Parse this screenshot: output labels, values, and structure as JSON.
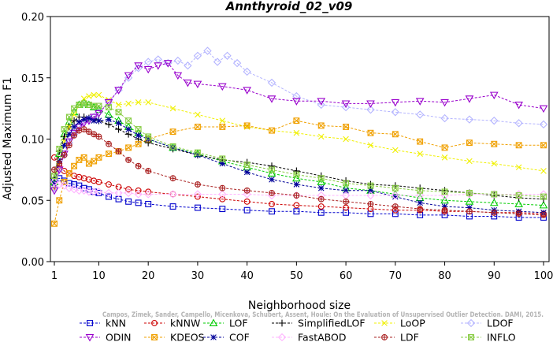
{
  "chart_data": {
    "type": "line",
    "title": "Annthyroid_02_v09",
    "xlabel": "Neighborhood size",
    "ylabel": "Adjusted Maximum F1",
    "xlim": [
      0,
      100
    ],
    "ylim": [
      0,
      0.2
    ],
    "xticks": [
      1,
      10,
      20,
      30,
      40,
      50,
      60,
      70,
      80,
      90,
      100
    ],
    "xtick_labels": [
      "1",
      "10",
      "20",
      "30",
      "40",
      "50",
      "60",
      "70",
      "80",
      "90",
      "100"
    ],
    "yticks": [
      0,
      0.05,
      0.1,
      0.15,
      0.2
    ],
    "ytick_labels": [
      "0.00",
      "0.05",
      "0.10",
      "0.15",
      "0.20"
    ],
    "grid": false,
    "legend_position": "bottom",
    "watermark": "Campos, Zimek, Sander, Campello, Micenkova, Schubert, Assent, Houle: On the Evaluation of Unsupervised Outlier Detection. DAMI, 2015.",
    "series": [
      {
        "name": "kNN",
        "color": "#0000cc",
        "marker": "square",
        "x": [
          1,
          2,
          3,
          4,
          5,
          6,
          7,
          8,
          9,
          10,
          12,
          14,
          16,
          18,
          20,
          25,
          30,
          35,
          40,
          45,
          50,
          55,
          60,
          65,
          70,
          75,
          80,
          85,
          90,
          95,
          100
        ],
        "y": [
          0.066,
          0.068,
          0.066,
          0.064,
          0.063,
          0.062,
          0.06,
          0.059,
          0.057,
          0.056,
          0.053,
          0.051,
          0.049,
          0.048,
          0.047,
          0.045,
          0.044,
          0.043,
          0.042,
          0.041,
          0.041,
          0.04,
          0.04,
          0.039,
          0.039,
          0.038,
          0.038,
          0.037,
          0.037,
          0.036,
          0.036
        ]
      },
      {
        "name": "kNNW",
        "color": "#cc0000",
        "marker": "circle",
        "x": [
          1,
          2,
          3,
          4,
          5,
          6,
          7,
          8,
          9,
          10,
          12,
          14,
          16,
          18,
          20,
          25,
          30,
          35,
          40,
          45,
          50,
          55,
          60,
          65,
          70,
          75,
          80,
          85,
          90,
          95,
          100
        ],
        "y": [
          0.085,
          0.078,
          0.074,
          0.072,
          0.07,
          0.069,
          0.068,
          0.067,
          0.066,
          0.065,
          0.063,
          0.061,
          0.059,
          0.058,
          0.057,
          0.055,
          0.053,
          0.051,
          0.049,
          0.047,
          0.046,
          0.045,
          0.044,
          0.043,
          0.042,
          0.042,
          0.041,
          0.041,
          0.04,
          0.04,
          0.039
        ]
      },
      {
        "name": "LOF",
        "color": "#00cc00",
        "marker": "triangle-up",
        "x": [
          1,
          2,
          3,
          4,
          5,
          6,
          7,
          8,
          9,
          10,
          12,
          14,
          16,
          18,
          20,
          25,
          30,
          35,
          40,
          45,
          50,
          55,
          60,
          65,
          70,
          75,
          80,
          85,
          90,
          95,
          100
        ],
        "y": [
          0.065,
          0.088,
          0.104,
          0.114,
          0.122,
          0.128,
          0.13,
          0.128,
          0.126,
          0.124,
          0.12,
          0.115,
          0.11,
          0.105,
          0.1,
          0.093,
          0.088,
          0.082,
          0.077,
          0.072,
          0.068,
          0.065,
          0.06,
          0.058,
          0.055,
          0.052,
          0.05,
          0.049,
          0.048,
          0.047,
          0.046
        ]
      },
      {
        "name": "SimplifiedLOF",
        "color": "#000000",
        "marker": "plus",
        "x": [
          1,
          2,
          3,
          4,
          5,
          6,
          7,
          8,
          9,
          10,
          12,
          14,
          16,
          18,
          20,
          25,
          30,
          35,
          40,
          45,
          50,
          55,
          60,
          65,
          70,
          75,
          80,
          85,
          90,
          95,
          100
        ],
        "y": [
          0.068,
          0.09,
          0.102,
          0.11,
          0.115,
          0.118,
          0.118,
          0.117,
          0.116,
          0.115,
          0.112,
          0.108,
          0.104,
          0.1,
          0.097,
          0.092,
          0.087,
          0.083,
          0.081,
          0.078,
          0.074,
          0.07,
          0.066,
          0.063,
          0.062,
          0.06,
          0.058,
          0.056,
          0.054,
          0.052,
          0.051
        ]
      },
      {
        "name": "LoOP",
        "color": "#f0f000",
        "marker": "x",
        "x": [
          1,
          2,
          3,
          4,
          5,
          6,
          7,
          8,
          9,
          10,
          12,
          14,
          16,
          18,
          20,
          25,
          30,
          35,
          40,
          45,
          50,
          55,
          60,
          65,
          70,
          75,
          80,
          85,
          90,
          95,
          100
        ],
        "y": [
          0.06,
          0.082,
          0.098,
          0.11,
          0.12,
          0.128,
          0.133,
          0.135,
          0.136,
          0.136,
          0.132,
          0.128,
          0.129,
          0.13,
          0.13,
          0.125,
          0.12,
          0.115,
          0.11,
          0.107,
          0.105,
          0.102,
          0.1,
          0.095,
          0.091,
          0.088,
          0.085,
          0.082,
          0.08,
          0.077,
          0.074
        ]
      },
      {
        "name": "LDOF",
        "color": "#b4b4ff",
        "marker": "diamond",
        "x": [
          1,
          2,
          3,
          4,
          5,
          6,
          7,
          8,
          9,
          10,
          12,
          14,
          16,
          18,
          20,
          22,
          24,
          26,
          28,
          30,
          32,
          34,
          36,
          38,
          40,
          45,
          50,
          55,
          60,
          65,
          70,
          75,
          80,
          85,
          90,
          95,
          100
        ],
        "y": [
          0.06,
          0.075,
          0.087,
          0.097,
          0.104,
          0.11,
          0.114,
          0.116,
          0.118,
          0.122,
          0.13,
          0.14,
          0.15,
          0.158,
          0.163,
          0.165,
          0.162,
          0.164,
          0.16,
          0.168,
          0.172,
          0.163,
          0.168,
          0.162,
          0.155,
          0.146,
          0.135,
          0.128,
          0.126,
          0.124,
          0.122,
          0.12,
          0.117,
          0.116,
          0.115,
          0.113,
          0.112
        ]
      },
      {
        "name": "ODIN",
        "color": "#9900cc",
        "marker": "triangle-down",
        "x": [
          1,
          2,
          3,
          4,
          5,
          6,
          7,
          8,
          9,
          10,
          12,
          14,
          16,
          18,
          20,
          22,
          24,
          26,
          28,
          30,
          35,
          40,
          45,
          50,
          55,
          60,
          65,
          70,
          75,
          80,
          85,
          90,
          95,
          100
        ],
        "y": [
          0.058,
          0.075,
          0.088,
          0.098,
          0.105,
          0.11,
          0.113,
          0.115,
          0.118,
          0.121,
          0.13,
          0.14,
          0.152,
          0.16,
          0.157,
          0.16,
          0.162,
          0.152,
          0.146,
          0.145,
          0.143,
          0.14,
          0.133,
          0.131,
          0.131,
          0.129,
          0.129,
          0.13,
          0.131,
          0.13,
          0.133,
          0.136,
          0.128,
          0.125
        ]
      },
      {
        "name": "KDEOS",
        "color": "#f0a000",
        "marker": "square-x",
        "x": [
          1,
          2,
          3,
          4,
          5,
          6,
          7,
          8,
          9,
          10,
          12,
          14,
          16,
          18,
          20,
          25,
          30,
          35,
          40,
          45,
          50,
          55,
          60,
          65,
          70,
          75,
          80,
          85,
          90,
          95,
          100
        ],
        "y": [
          0.031,
          0.05,
          0.065,
          0.072,
          0.078,
          0.083,
          0.085,
          0.08,
          0.082,
          0.085,
          0.088,
          0.09,
          0.093,
          0.096,
          0.1,
          0.106,
          0.11,
          0.11,
          0.111,
          0.107,
          0.115,
          0.111,
          0.11,
          0.105,
          0.104,
          0.098,
          0.093,
          0.097,
          0.096,
          0.095,
          0.095
        ]
      },
      {
        "name": "COF",
        "color": "#000099",
        "marker": "star",
        "x": [
          1,
          2,
          3,
          4,
          5,
          6,
          7,
          8,
          9,
          10,
          12,
          14,
          16,
          18,
          20,
          25,
          30,
          35,
          40,
          45,
          50,
          55,
          60,
          65,
          70,
          75,
          80,
          85,
          90,
          95,
          100
        ],
        "y": [
          0.064,
          0.082,
          0.095,
          0.104,
          0.11,
          0.114,
          0.116,
          0.117,
          0.115,
          0.115,
          0.116,
          0.113,
          0.108,
          0.103,
          0.1,
          0.093,
          0.087,
          0.08,
          0.073,
          0.067,
          0.063,
          0.06,
          0.058,
          0.058,
          0.053,
          0.048,
          0.045,
          0.044,
          0.042,
          0.041,
          0.04
        ]
      },
      {
        "name": "FastABOD",
        "color": "#ffb4ff",
        "marker": "diamond",
        "x": [
          1,
          2,
          3,
          4,
          5,
          6,
          7,
          8,
          9,
          10,
          12,
          14,
          16,
          18,
          20,
          25,
          30,
          35,
          40,
          45,
          50,
          55,
          60,
          65,
          70,
          75,
          80,
          85,
          90,
          95,
          100
        ],
        "y": [
          0.065,
          0.063,
          0.062,
          0.06,
          0.059,
          0.058,
          0.058,
          0.057,
          0.057,
          0.057,
          0.056,
          0.056,
          0.056,
          0.055,
          0.055,
          0.055,
          0.055,
          0.055,
          0.055,
          0.054,
          0.054,
          0.054,
          0.054,
          0.054,
          0.054,
          0.054,
          0.054,
          0.055,
          0.055,
          0.055,
          0.055
        ]
      },
      {
        "name": "LDF",
        "color": "#aa2222",
        "marker": "circle-plus",
        "x": [
          1,
          2,
          3,
          4,
          5,
          6,
          7,
          8,
          9,
          10,
          12,
          14,
          16,
          18,
          20,
          25,
          30,
          35,
          40,
          45,
          50,
          55,
          60,
          65,
          70,
          75,
          80,
          85,
          90,
          95,
          100
        ],
        "y": [
          0.075,
          0.08,
          0.087,
          0.095,
          0.103,
          0.107,
          0.108,
          0.106,
          0.104,
          0.102,
          0.096,
          0.09,
          0.083,
          0.078,
          0.074,
          0.068,
          0.063,
          0.06,
          0.058,
          0.056,
          0.054,
          0.051,
          0.049,
          0.047,
          0.045,
          0.043,
          0.042,
          0.041,
          0.04,
          0.039,
          0.038
        ]
      },
      {
        "name": "INFLO",
        "color": "#88cc44",
        "marker": "square-x",
        "x": [
          1,
          2,
          3,
          4,
          5,
          6,
          7,
          8,
          9,
          10,
          12,
          14,
          16,
          18,
          20,
          25,
          30,
          35,
          40,
          45,
          50,
          55,
          60,
          65,
          70,
          75,
          80,
          85,
          90,
          95,
          100
        ],
        "y": [
          0.07,
          0.092,
          0.108,
          0.118,
          0.125,
          0.128,
          0.129,
          0.128,
          0.127,
          0.127,
          0.126,
          0.122,
          0.115,
          0.108,
          0.102,
          0.094,
          0.089,
          0.084,
          0.079,
          0.075,
          0.071,
          0.068,
          0.064,
          0.062,
          0.06,
          0.058,
          0.057,
          0.056,
          0.055,
          0.054,
          0.053
        ]
      }
    ]
  }
}
